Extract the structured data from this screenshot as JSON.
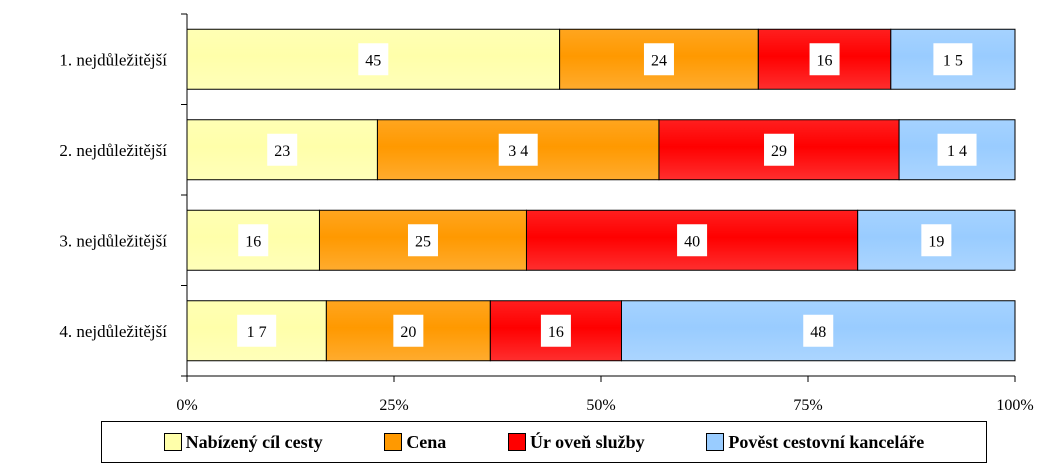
{
  "chart_data": {
    "type": "bar",
    "orientation": "horizontal",
    "stacked": "percent",
    "categories": [
      "1. nejdůležitější",
      "2. nejdůležitější",
      "3. nejdůležitější",
      "4. nejdůležitější"
    ],
    "series": [
      {
        "name": "Nabízený cíl cesty",
        "color": "#ffffaa",
        "values": [
          45,
          23,
          16,
          17
        ],
        "labels": [
          "45",
          "23",
          "16",
          "1 7"
        ]
      },
      {
        "name": "Cena",
        "color": "#ff9900",
        "values": [
          24,
          34,
          25,
          20
        ],
        "labels": [
          "24",
          "3 4",
          "25",
          "20"
        ]
      },
      {
        "name": "Úroveň služby",
        "color": "#ff0000",
        "values": [
          16,
          29,
          40,
          16
        ],
        "labels": [
          "16",
          "29",
          "40",
          "16"
        ]
      },
      {
        "name": "Pověst cestovní kanceláře",
        "color": "#99ccff",
        "values": [
          15,
          14,
          19,
          48
        ],
        "labels": [
          "1 5",
          "1 4",
          "19",
          "48"
        ]
      }
    ],
    "xticks": [
      "0%",
      "25%",
      "50%",
      "75%",
      "100%"
    ],
    "xlim": [
      0,
      100
    ],
    "grid": false,
    "legend_position": "bottom"
  },
  "legend": {
    "items": [
      {
        "label": "Nabízený cíl cesty",
        "color": "#ffffaa"
      },
      {
        "label": "Cena",
        "color": "#ff9900"
      },
      {
        "label": "Úr oveň služby",
        "color": "#ff0000"
      },
      {
        "label": "Pověst cestovní kanceláře",
        "color": "#99ccff"
      }
    ]
  }
}
